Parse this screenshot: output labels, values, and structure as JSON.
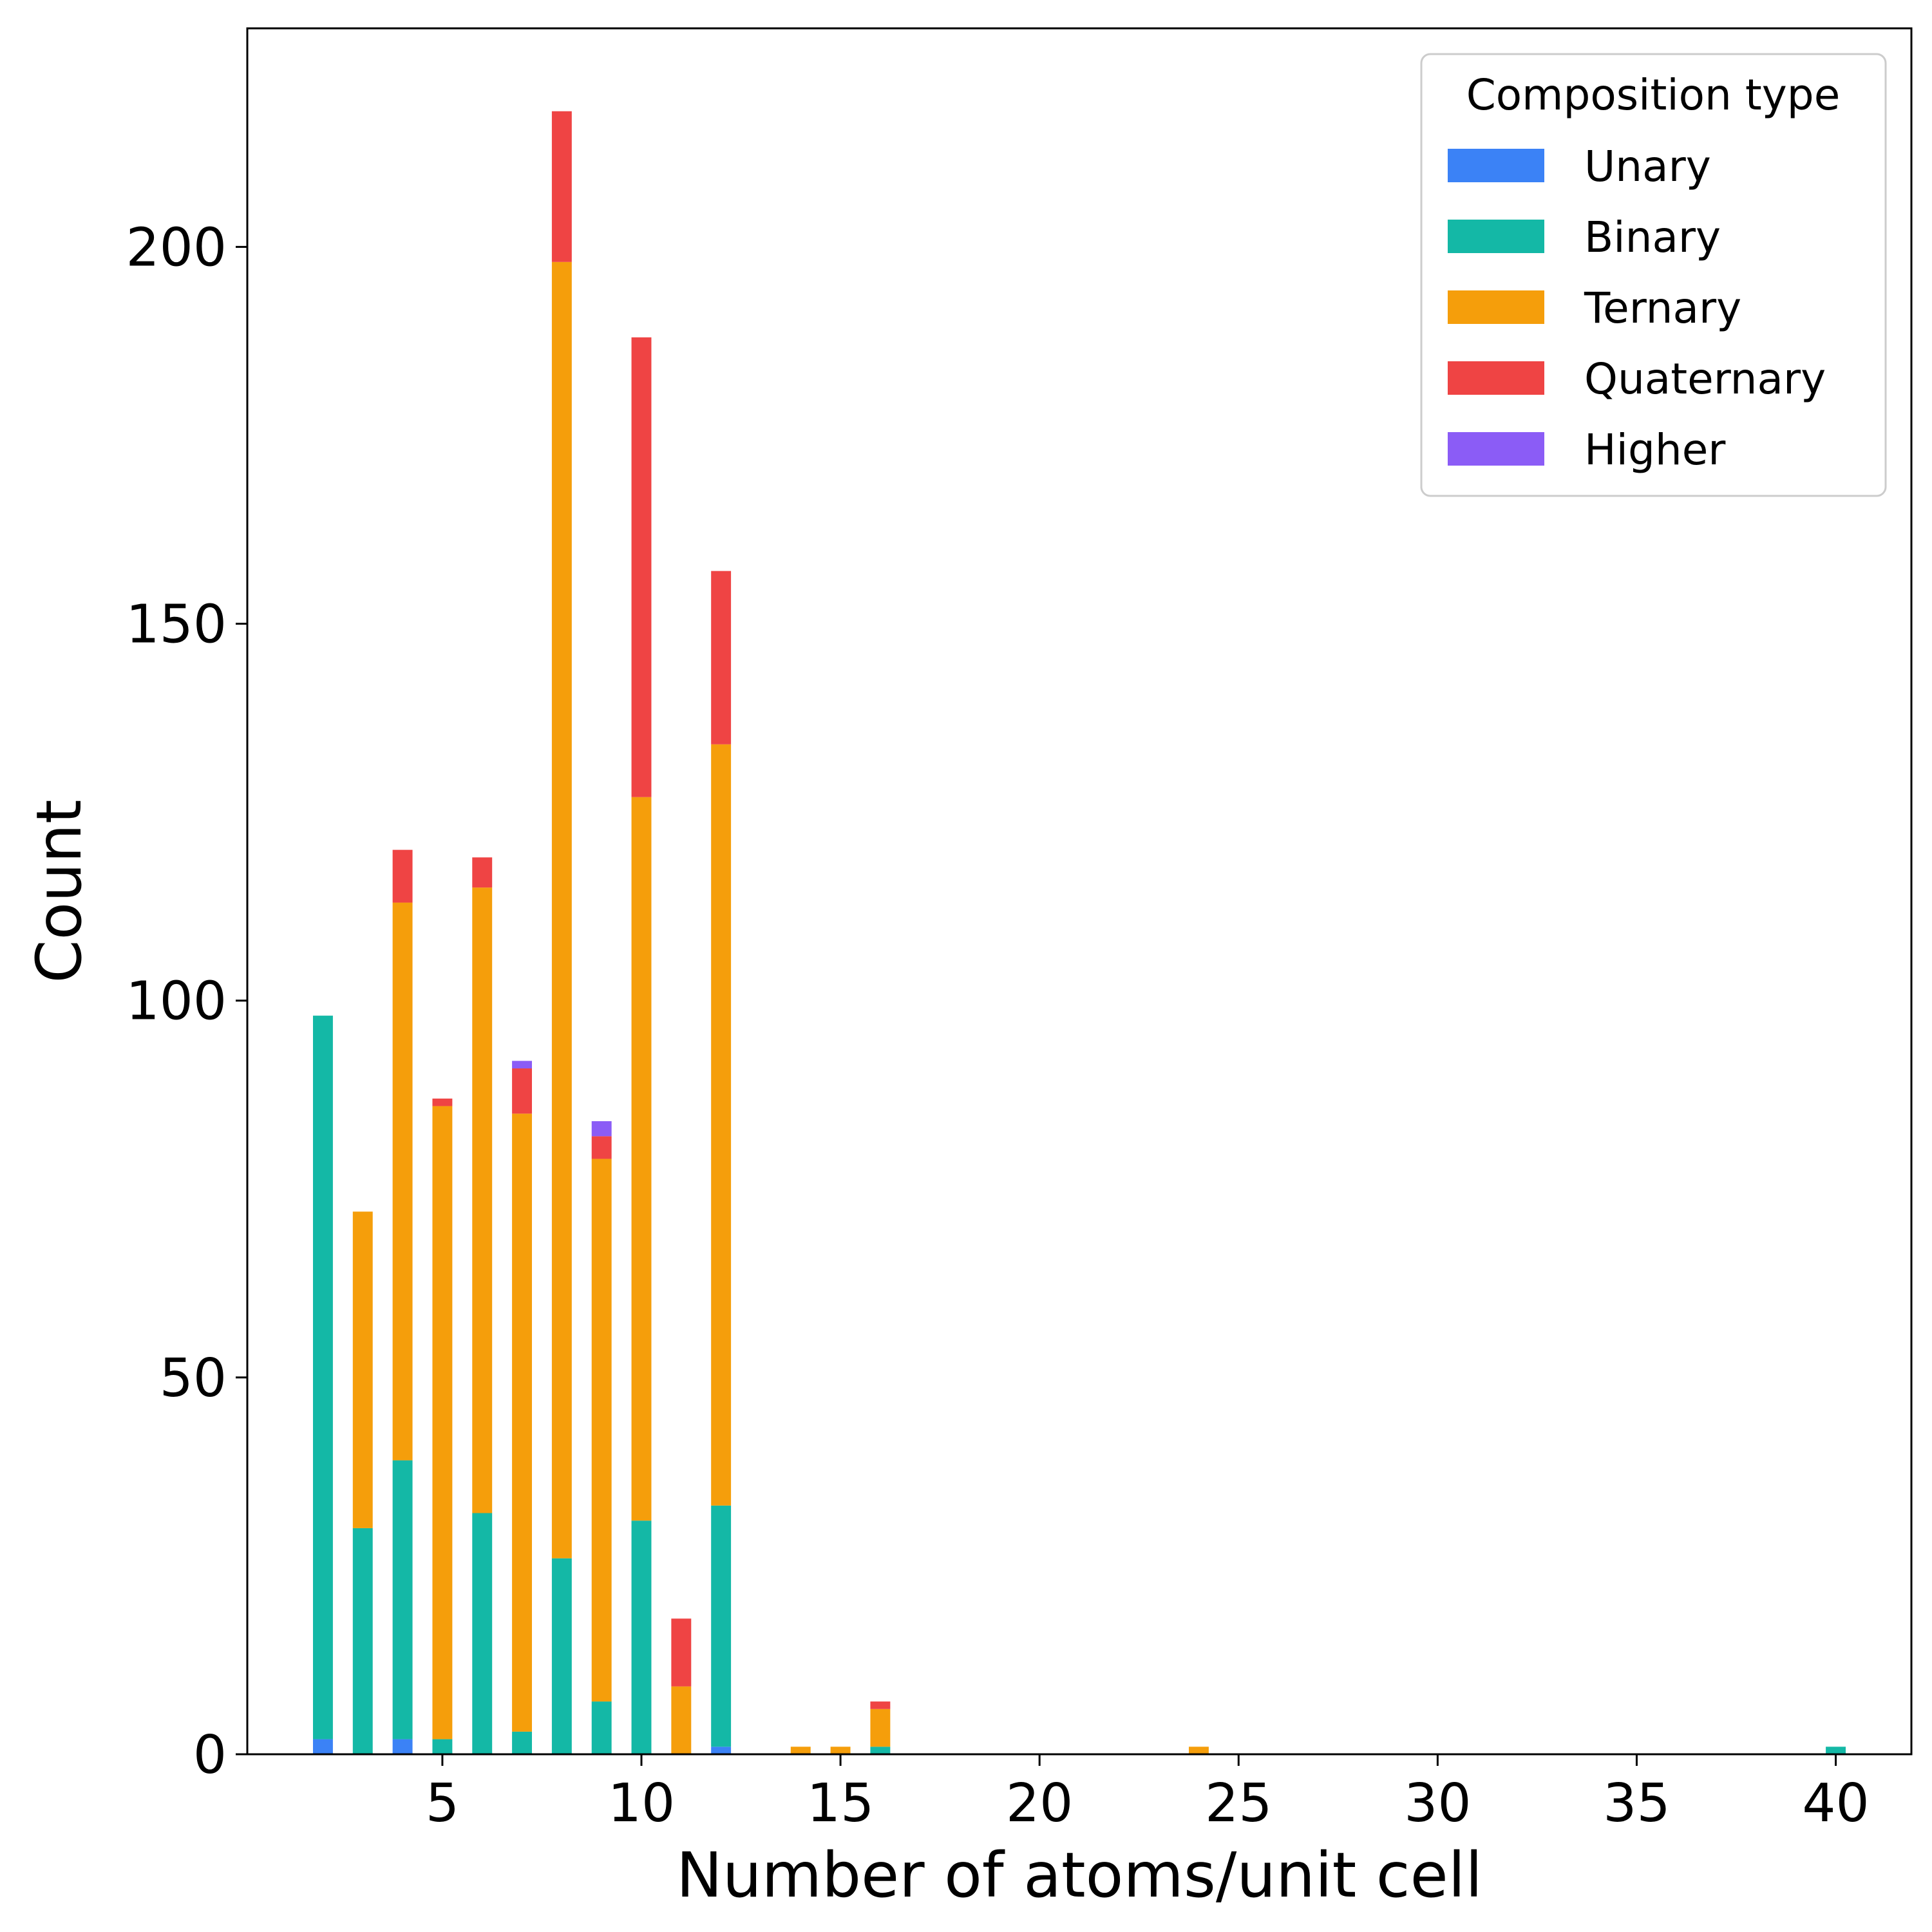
{
  "chart_data": {
    "type": "bar",
    "stacked": true,
    "xlabel": "Number of atoms/unit cell",
    "ylabel": "Count",
    "xlim": [
      0.1,
      41.9
    ],
    "ylim": [
      0,
      229
    ],
    "xticks": [
      5,
      10,
      15,
      20,
      25,
      30,
      35,
      40
    ],
    "yticks": [
      0,
      50,
      100,
      150,
      200
    ],
    "bar_width": 0.5,
    "grid": false,
    "legend": {
      "title": "Composition type",
      "placement": "top-right"
    },
    "x": [
      2,
      3,
      4,
      5,
      6,
      7,
      8,
      9,
      10,
      11,
      12,
      14,
      15,
      16,
      24,
      40
    ],
    "series": [
      {
        "name": "Unary",
        "color": "#3b82f6",
        "values": [
          2,
          0,
          2,
          0,
          0,
          0,
          0,
          0,
          0,
          0,
          1,
          0,
          0,
          0,
          0,
          0
        ]
      },
      {
        "name": "Binary",
        "color": "#14b8a6",
        "values": [
          96,
          30,
          37,
          2,
          32,
          3,
          26,
          7,
          31,
          0,
          32,
          0,
          0,
          1,
          0,
          1
        ]
      },
      {
        "name": "Ternary",
        "color": "#f59e0b",
        "values": [
          0,
          42,
          74,
          84,
          83,
          82,
          172,
          72,
          96,
          9,
          101,
          1,
          1,
          5,
          1,
          0
        ]
      },
      {
        "name": "Quaternary",
        "color": "#ef4444",
        "values": [
          0,
          0,
          7,
          1,
          4,
          6,
          20,
          3,
          61,
          9,
          23,
          0,
          0,
          1,
          0,
          0
        ]
      },
      {
        "name": "Higher",
        "color": "#8b5cf6",
        "values": [
          0,
          0,
          0,
          0,
          0,
          1,
          0,
          2,
          0,
          0,
          0,
          0,
          0,
          0,
          0,
          0
        ]
      }
    ]
  }
}
